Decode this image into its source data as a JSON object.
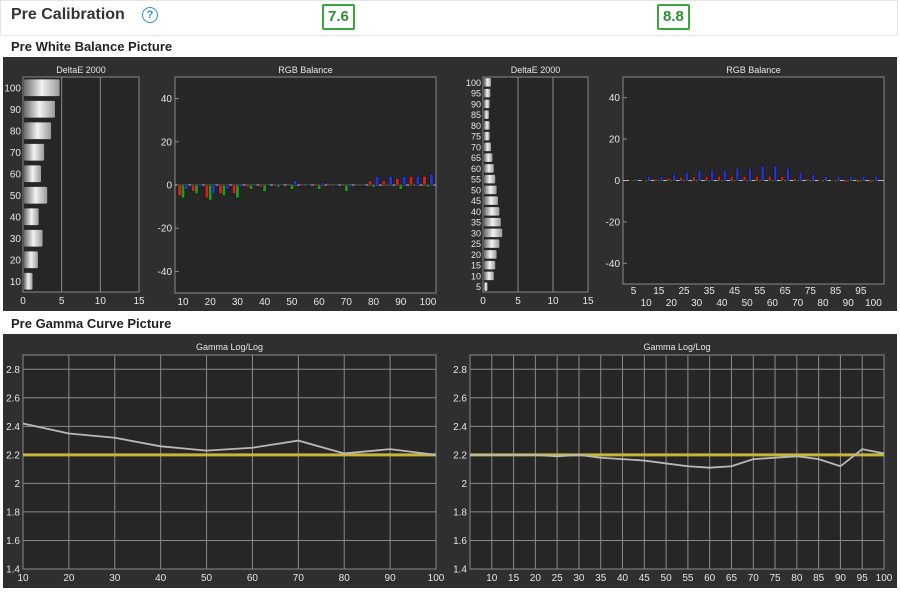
{
  "header": {
    "title": "Pre Calibration",
    "help_glyph": "?",
    "help_icon": "question-circle-icon",
    "score_left": "7.6",
    "score_right": "8.8",
    "score_color": "#3aa53a"
  },
  "sections": {
    "white_balance": "Pre White Balance Picture",
    "gamma": "Pre Gamma Curve Picture"
  },
  "colors": {
    "panel_bg": "#2f2f2f",
    "plot_bg": "#262626",
    "grid": "#8a8a8a",
    "red": "#d42020",
    "green": "#1f9a1f",
    "blue": "#2434d6",
    "gamma_target": "#c8b43a",
    "gamma_line": "#b8b8b8"
  },
  "chart_data": [
    {
      "type": "bar",
      "orientation": "horizontal",
      "title": "DeltaE 2000",
      "categories": [
        "10",
        "20",
        "30",
        "40",
        "50",
        "60",
        "70",
        "80",
        "90",
        "100"
      ],
      "values": [
        1.1,
        1.8,
        2.4,
        1.9,
        3.0,
        2.2,
        2.6,
        3.5,
        4.0,
        4.6
      ],
      "x_ticks": [
        "0",
        "5",
        "10",
        "15"
      ],
      "xlim": [
        0,
        15
      ]
    },
    {
      "type": "bar",
      "title": "RGB Balance",
      "categories": [
        "10",
        "20",
        "30",
        "40",
        "50",
        "60",
        "70",
        "80",
        "90",
        "100"
      ],
      "ylim": [
        -50,
        50
      ],
      "y_ticks": [
        "40",
        "20",
        "0",
        "-20",
        "-40"
      ],
      "bars": [
        {
          "x": 10,
          "r": -5,
          "g": -6,
          "b": -2
        },
        {
          "x": 15,
          "r": -3,
          "g": -4,
          "b": -1
        },
        {
          "x": 20,
          "r": -6,
          "g": -7,
          "b": -4
        },
        {
          "x": 25,
          "r": -4,
          "g": -5,
          "b": -2
        },
        {
          "x": 30,
          "r": -4,
          "g": -6,
          "b": -1
        },
        {
          "x": 35,
          "r": -1,
          "g": -2,
          "b": 0
        },
        {
          "x": 40,
          "r": -1,
          "g": -3,
          "b": 0
        },
        {
          "x": 45,
          "r": 0,
          "g": -1,
          "b": 0
        },
        {
          "x": 50,
          "r": 0,
          "g": -2,
          "b": 2
        },
        {
          "x": 55,
          "r": 0,
          "g": 0,
          "b": 0
        },
        {
          "x": 60,
          "r": 0,
          "g": -2,
          "b": 1
        },
        {
          "x": 65,
          "r": 0,
          "g": 0,
          "b": 0
        },
        {
          "x": 70,
          "r": 0,
          "g": -3,
          "b": -1
        },
        {
          "x": 75,
          "r": 0,
          "g": 0,
          "b": 0
        },
        {
          "x": 80,
          "r": 2,
          "g": -1,
          "b": 4
        },
        {
          "x": 85,
          "r": 2,
          "g": 0,
          "b": 4
        },
        {
          "x": 90,
          "r": 3,
          "g": -2,
          "b": 4
        },
        {
          "x": 95,
          "r": 4,
          "g": 0,
          "b": 4
        },
        {
          "x": 100,
          "r": 4,
          "g": -1,
          "b": 5
        }
      ]
    },
    {
      "type": "bar",
      "orientation": "horizontal",
      "title": "DeltaE 2000",
      "categories": [
        "5",
        "10",
        "15",
        "20",
        "25",
        "30",
        "35",
        "40",
        "45",
        "50",
        "55",
        "60",
        "65",
        "70",
        "75",
        "80",
        "85",
        "90",
        "95",
        "100"
      ],
      "values": [
        0.5,
        1.4,
        1.6,
        1.8,
        2.2,
        2.6,
        2.4,
        2.2,
        2.0,
        1.8,
        1.6,
        1.4,
        1.2,
        1.0,
        0.8,
        0.8,
        0.7,
        0.8,
        0.9,
        1.0
      ],
      "x_ticks": [
        "0",
        "5",
        "10",
        "15"
      ],
      "xlim": [
        0,
        15
      ]
    },
    {
      "type": "bar",
      "title": "RGB Balance",
      "categories": [
        "5",
        "10",
        "15",
        "20",
        "25",
        "30",
        "35",
        "40",
        "45",
        "50",
        "55",
        "60",
        "65",
        "70",
        "75",
        "80",
        "85",
        "90",
        "95",
        "100"
      ],
      "x_top_ticks": [
        "5",
        "15",
        "25",
        "35",
        "45",
        "55",
        "65",
        "75",
        "85",
        "95"
      ],
      "x_bottom_ticks": [
        "10",
        "20",
        "30",
        "40",
        "50",
        "60",
        "70",
        "80",
        "90",
        "100"
      ],
      "ylim": [
        -50,
        50
      ],
      "y_ticks": [
        "40",
        "20",
        "0",
        "-20",
        "-40"
      ],
      "bars": [
        {
          "x": 5,
          "r": 0.5,
          "g": 0,
          "b": 1
        },
        {
          "x": 10,
          "r": 0.5,
          "g": 0,
          "b": 2
        },
        {
          "x": 15,
          "r": 0.8,
          "g": 0,
          "b": 2
        },
        {
          "x": 20,
          "r": 1.2,
          "g": 0,
          "b": 3
        },
        {
          "x": 25,
          "r": 1.5,
          "g": 0,
          "b": 4
        },
        {
          "x": 30,
          "r": 1.8,
          "g": 0,
          "b": 5
        },
        {
          "x": 35,
          "r": 2,
          "g": 0,
          "b": 5
        },
        {
          "x": 40,
          "r": 2,
          "g": 0,
          "b": 5
        },
        {
          "x": 45,
          "r": 2,
          "g": 0,
          "b": 6
        },
        {
          "x": 50,
          "r": 2,
          "g": 0,
          "b": 6
        },
        {
          "x": 55,
          "r": 2,
          "g": 0,
          "b": 7
        },
        {
          "x": 60,
          "r": 2,
          "g": 0,
          "b": 7
        },
        {
          "x": 65,
          "r": 2,
          "g": 0,
          "b": 6
        },
        {
          "x": 70,
          "r": 1,
          "g": 0,
          "b": 4
        },
        {
          "x": 75,
          "r": 0.8,
          "g": 0,
          "b": 3
        },
        {
          "x": 80,
          "r": 0.5,
          "g": 0,
          "b": 2
        },
        {
          "x": 85,
          "r": 0.5,
          "g": 0,
          "b": 2
        },
        {
          "x": 90,
          "r": -1,
          "g": 0,
          "b": 2
        },
        {
          "x": 95,
          "r": -1,
          "g": 0,
          "b": 2
        },
        {
          "x": 100,
          "r": -1,
          "g": 0,
          "b": 2
        }
      ]
    },
    {
      "type": "line",
      "title": "Gamma Log/Log",
      "x": [
        10,
        20,
        30,
        40,
        50,
        60,
        70,
        80,
        90,
        100
      ],
      "y": [
        2.42,
        2.35,
        2.32,
        2.26,
        2.23,
        2.25,
        2.3,
        2.21,
        2.24,
        2.2
      ],
      "target": 2.2,
      "xlim": [
        10,
        100
      ],
      "ylim": [
        1.4,
        2.9
      ],
      "x_ticks": [
        "10",
        "20",
        "30",
        "40",
        "50",
        "60",
        "70",
        "80",
        "90",
        "100"
      ],
      "y_ticks": [
        "2.8",
        "2.6",
        "2.4",
        "2.2",
        "2",
        "1.8",
        "1.6",
        "1.4"
      ]
    },
    {
      "type": "line",
      "title": "Gamma Log/Log",
      "x": [
        5,
        10,
        15,
        20,
        25,
        30,
        35,
        40,
        45,
        50,
        55,
        60,
        65,
        70,
        75,
        80,
        85,
        90,
        95,
        100
      ],
      "y": [
        2.2,
        2.2,
        2.2,
        2.2,
        2.19,
        2.2,
        2.18,
        2.17,
        2.16,
        2.14,
        2.12,
        2.11,
        2.12,
        2.17,
        2.18,
        2.19,
        2.17,
        2.12,
        2.24,
        2.21
      ],
      "target": 2.2,
      "xlim": [
        5,
        100
      ],
      "ylim": [
        1.4,
        2.9
      ],
      "x_ticks": [
        "10",
        "15",
        "20",
        "25",
        "30",
        "35",
        "40",
        "45",
        "50",
        "55",
        "60",
        "65",
        "70",
        "75",
        "80",
        "85",
        "90",
        "95",
        "100"
      ],
      "y_ticks": [
        "2.8",
        "2.6",
        "2.4",
        "2.2",
        "2",
        "1.8",
        "1.6",
        "1.4"
      ]
    }
  ]
}
